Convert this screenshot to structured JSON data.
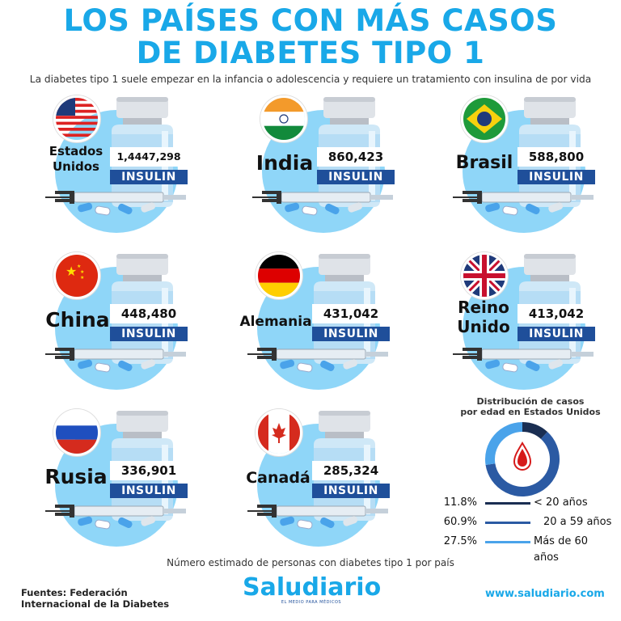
{
  "title_line1": "LOS PAÍSES CON MÁS CASOS",
  "title_line2": "DE DIABETES TIPO 1",
  "subtitle": "La diabetes tipo 1 suele empezar en la infancia o adolescencia y requiere un tratamiento con insulina de por vida",
  "insulin_label": "INSULIN",
  "colors": {
    "accent": "#19a8e8",
    "circle": "#8fd6f8",
    "insulin": "#1f4f9a",
    "donut_lt20": "#1a2e52",
    "donut_20_59": "#2b5aa3",
    "donut_60": "#4aa3ea"
  },
  "countries": [
    {
      "name_line1": "Estados",
      "name_line2": "Unidos",
      "value": "1,4447,298",
      "flag": "usa-flag"
    },
    {
      "name_line1": "India",
      "name_line2": "",
      "value": "860,423",
      "flag": "india-flag"
    },
    {
      "name_line1": "Brasil",
      "name_line2": "",
      "value": "588,800",
      "flag": "brazil-flag"
    },
    {
      "name_line1": "China",
      "name_line2": "",
      "value": "448,480",
      "flag": "china-flag"
    },
    {
      "name_line1": "Alemania",
      "name_line2": "",
      "value": "431,042",
      "flag": "germany-flag"
    },
    {
      "name_line1": "Reino",
      "name_line2": "Unido",
      "value": "413,042",
      "flag": "uk-flag"
    },
    {
      "name_line1": "Rusia",
      "name_line2": "",
      "value": "336,901",
      "flag": "russia-flag"
    },
    {
      "name_line1": "Canadá",
      "name_line2": "",
      "value": "285,324",
      "flag": "canada-flag"
    }
  ],
  "chart_data": {
    "type": "pie",
    "title": "Distribución de casos por edad en Estados Unidos",
    "title_line1": "Distribución de casos",
    "title_line2": "por edad en Estados Unidos",
    "slices": [
      {
        "label": "< 20 años",
        "value": 11.8,
        "pct_label": "11.8%"
      },
      {
        "label": "20 a 59 años",
        "value": 60.9,
        "pct_label": "60.9%"
      },
      {
        "label": "Más de 60 años",
        "value": 27.5,
        "pct_label": "27.5%"
      }
    ]
  },
  "footer_note": "Número estimado de personas con diabetes tipo 1 por país",
  "sources_line1": "Fuentes: Federación",
  "sources_line2": "Internacional de la Diabetes",
  "logo": "Saludiario",
  "tagline": "EL MEDIO PARA MÉDICOS",
  "website": "www.saludiario.com"
}
